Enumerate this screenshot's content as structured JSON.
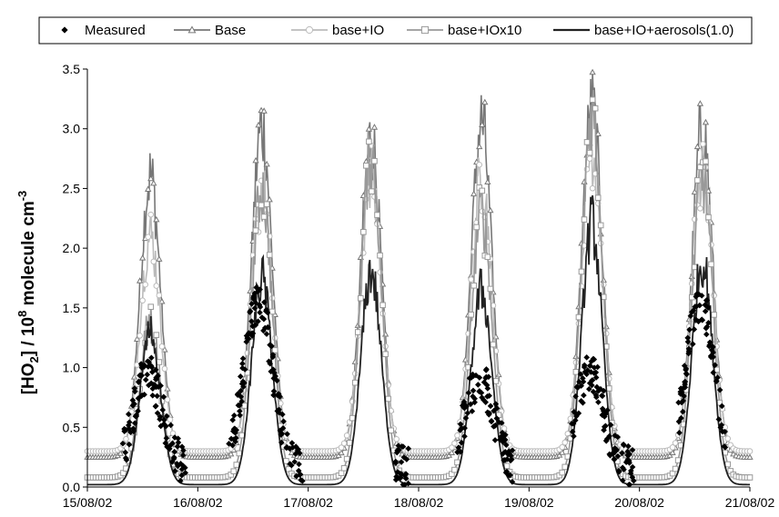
{
  "chart_data": {
    "type": "line",
    "title": "",
    "xlabel": "",
    "ylabel": {
      "main": "[HO",
      "sub": "2",
      "mid": "] / 10",
      "sup": "8",
      "unit": " molecule cm",
      "unit_sup": "-3"
    },
    "xlim": [
      "15/08/02",
      "21/08/02"
    ],
    "ylim": [
      0,
      3.5
    ],
    "x_ticks": [
      "15/08/02",
      "16/08/02",
      "17/08/02",
      "18/08/02",
      "19/08/02",
      "20/08/02",
      "21/08/02"
    ],
    "y_ticks": [
      "0.0",
      "0.5",
      "1.0",
      "1.5",
      "2.0",
      "2.5",
      "3.0",
      "3.5"
    ],
    "grid": false,
    "legend_position": "top",
    "series": [
      {
        "name": "Measured",
        "style": "markers",
        "marker": "diamond",
        "color": "#000000",
        "peak_x": [
          0.55,
          1.55,
          2.55,
          3.55,
          4.55,
          5.55
        ],
        "peak_y": [
          0.95,
          1.55,
          0.6,
          0.9,
          0.95,
          1.55
        ],
        "x_ranges": [
          [
            0.32,
            0.9
          ],
          [
            1.28,
            1.95
          ],
          [
            2.78,
            2.92
          ],
          [
            3.35,
            3.85
          ],
          [
            4.38,
            4.95
          ],
          [
            5.35,
            5.78
          ]
        ]
      },
      {
        "name": "Base",
        "style": "line+markers",
        "marker": "triangle",
        "color": "#777777",
        "night_level": 0.25,
        "peaks_x": [
          0.57,
          1.58,
          2.57,
          3.57,
          4.57,
          5.57
        ],
        "peaks_y": [
          2.6,
          3.02,
          2.92,
          3.05,
          3.16,
          3.0
        ]
      },
      {
        "name": "base+IO",
        "style": "line+markers",
        "marker": "circle",
        "color": "#bbbbbb",
        "night_level": 0.3,
        "peaks_x": [
          0.57,
          1.58,
          2.57,
          3.57,
          4.57,
          5.57
        ],
        "peaks_y": [
          2.1,
          2.5,
          2.6,
          2.6,
          2.85,
          2.7
        ]
      },
      {
        "name": "base+IOx10",
        "style": "line+markers",
        "marker": "square",
        "color": "#999999",
        "night_level": 0.08,
        "peaks_x": [
          0.57,
          1.58,
          2.57,
          3.57,
          4.57,
          5.57
        ],
        "peaks_y": [
          1.4,
          2.5,
          2.8,
          2.3,
          3.15,
          2.6
        ]
      },
      {
        "name": "base+IO+aerosols(1.0)",
        "style": "line",
        "marker": "none",
        "color": "#222222",
        "night_level": 0.02,
        "peaks_x": [
          0.57,
          1.58,
          2.57,
          3.57,
          4.57,
          5.57
        ],
        "peaks_y": [
          1.3,
          1.75,
          1.8,
          1.65,
          2.2,
          1.9
        ]
      }
    ]
  }
}
